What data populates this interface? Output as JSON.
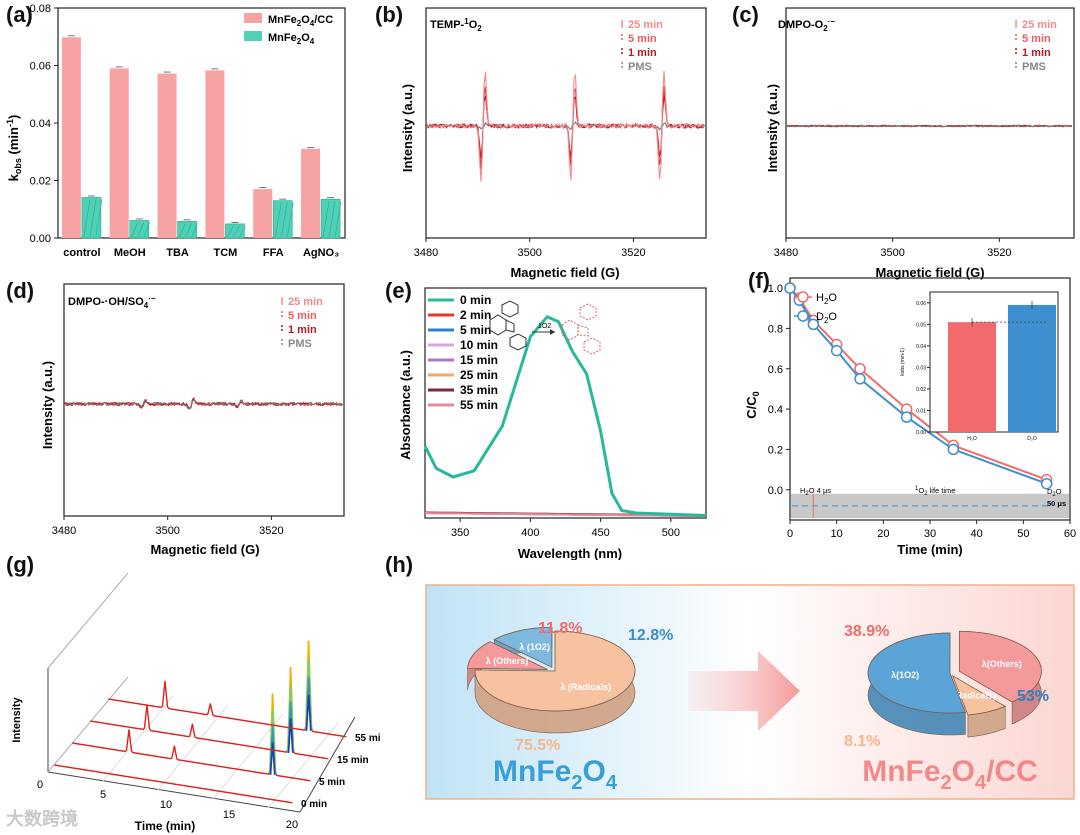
{
  "panel_labels": {
    "a": "(a)",
    "b": "(b)",
    "c": "(c)",
    "d": "(d)",
    "e": "(e)",
    "f": "(f)",
    "g": "(g)",
    "h": "(h)"
  },
  "chart_data": [
    {
      "panel": "a",
      "type": "bar",
      "categories": [
        "control",
        "MeOH",
        "TBA",
        "TCM",
        "FFA",
        "AgNO3"
      ],
      "series": [
        {
          "name": "MnFe2O4/CC",
          "values": [
            0.0698,
            0.059,
            0.0572,
            0.0583,
            0.017,
            0.031
          ],
          "color": "#f8a3a3"
        },
        {
          "name": "MnFe2O4",
          "values": [
            0.0141,
            0.0061,
            0.0058,
            0.0049,
            0.013,
            0.0135
          ],
          "color": "#4fd1b5"
        }
      ],
      "ylabel": "kobs (min-1)",
      "ylim": [
        0,
        0.08
      ],
      "yticks": [
        "0.00",
        "0.02",
        "0.04",
        "0.06",
        "0.08"
      ]
    },
    {
      "panel": "b",
      "type": "line",
      "title": "TEMP-1O2",
      "xlabel": "Magnetic field (G)",
      "ylabel": "Intensity (a.u.)",
      "xlim": [
        3480,
        3534
      ],
      "xticks": [
        3480,
        3500,
        3520
      ],
      "legend": [
        "25 min",
        "5 min",
        "1 min",
        "PMS"
      ],
      "peaks_G": [
        3491.0,
        3508.3,
        3525.5
      ],
      "series": [
        {
          "name": "25 min",
          "amplitude": 1.0,
          "color": "#f28b8b"
        },
        {
          "name": "5 min",
          "amplitude": 0.72,
          "color": "#e0303a"
        },
        {
          "name": "1 min",
          "amplitude": 0.55,
          "color": "#b01a22"
        },
        {
          "name": "PMS",
          "amplitude": 0.04,
          "color": "#777777"
        }
      ]
    },
    {
      "panel": "c",
      "type": "line",
      "title": "DMPO-O2·−",
      "xlabel": "Magnetic field (G)",
      "ylabel": "Intensity (a.u.)",
      "xlim": [
        3480,
        3534
      ],
      "xticks": [
        3480,
        3500,
        3520
      ],
      "legend": [
        "25 min",
        "5 min",
        "1 min",
        "PMS"
      ]
    },
    {
      "panel": "d",
      "type": "line",
      "title": "DMPO-·OH/SO4·−",
      "xlabel": "Magnetic field (G)",
      "ylabel": "Intensity (a.u.)",
      "xlim": [
        3480,
        3534
      ],
      "xticks": [
        3480,
        3500,
        3520
      ],
      "legend": [
        "25 min",
        "5 min",
        "1 min",
        "PMS"
      ]
    },
    {
      "panel": "e",
      "type": "line",
      "xlabel": "Wavelength (nm)",
      "ylabel": "Absorbance (a.u.)",
      "xlim": [
        325,
        525
      ],
      "xticks": [
        350,
        400,
        450,
        500
      ],
      "series": [
        {
          "name": "0 min",
          "color": "#26b99a"
        },
        {
          "name": "2 min",
          "color": "#e0392f"
        },
        {
          "name": "5 min",
          "color": "#2f7fd0"
        },
        {
          "name": "10 min",
          "color": "#d7a6e0"
        },
        {
          "name": "15 min",
          "color": "#a77cc9"
        },
        {
          "name": "25 min",
          "color": "#f2a66b"
        },
        {
          "name": "35 min",
          "color": "#7a2a3c"
        },
        {
          "name": "55 min",
          "color": "#e58a98"
        }
      ],
      "curve_0min": [
        [
          325,
          0.29
        ],
        [
          333,
          0.2
        ],
        [
          345,
          0.165
        ],
        [
          360,
          0.19
        ],
        [
          380,
          0.37
        ],
        [
          400,
          0.73
        ],
        [
          412,
          0.81
        ],
        [
          420,
          0.79
        ],
        [
          430,
          0.67
        ],
        [
          440,
          0.58
        ],
        [
          450,
          0.35
        ],
        [
          458,
          0.1
        ],
        [
          465,
          0.03
        ],
        [
          475,
          0.02
        ],
        [
          525,
          0.01
        ]
      ]
    },
    {
      "panel": "f",
      "type": "line",
      "xlabel": "Time (min)",
      "ylabel": "C/C0",
      "xlim": [
        0,
        60
      ],
      "ylim": [
        -0.15,
        1.05
      ],
      "xticks": [
        0,
        10,
        20,
        30,
        40,
        50,
        60
      ],
      "yticks": [
        "0.0",
        "0.2",
        "0.4",
        "0.6",
        "0.8",
        "1.0"
      ],
      "series": [
        {
          "name": "H2O",
          "color": "#f26b6b",
          "x": [
            0,
            2,
            5,
            10,
            15,
            25,
            35,
            55
          ],
          "y": [
            1.0,
            0.95,
            0.84,
            0.72,
            0.6,
            0.4,
            0.22,
            0.05
          ]
        },
        {
          "name": "D2O",
          "color": "#3d8fd0",
          "x": [
            0,
            2,
            5,
            10,
            15,
            25,
            35,
            55
          ],
          "y": [
            1.0,
            0.94,
            0.82,
            0.69,
            0.55,
            0.36,
            0.2,
            0.03
          ]
        }
      ],
      "annotations": [
        "H2O 4 μs",
        "1O2 life time",
        "D2O",
        "50 μs"
      ],
      "inset": {
        "type": "bar",
        "categories": [
          "H2O",
          "D2O"
        ],
        "values": [
          0.051,
          0.059
        ],
        "colors": [
          "#f26b6b",
          "#3d8fd0"
        ],
        "ylabel": "kobs (min-1)",
        "yticks": [
          "0.00",
          "0.01",
          "0.02",
          "0.03",
          "0.04",
          "0.05",
          "0.06"
        ],
        "ylim": [
          0,
          0.065
        ]
      }
    },
    {
      "panel": "g",
      "type": "line",
      "xlabel": "Time (min)",
      "ylabel": "Intensity",
      "xlim": [
        0,
        20
      ],
      "xticks": [
        0,
        5,
        10,
        15,
        20
      ],
      "series": [
        {
          "name": "0 min",
          "peaks": [
            {
              "t": 16.4,
              "h": 0.0
            }
          ]
        },
        {
          "name": "5 min",
          "peaks": [
            {
              "t": 5.0,
              "h": 0.25
            },
            {
              "t": 8.6,
              "h": 0.15
            },
            {
              "t": 16.4,
              "h": 0.9
            }
          ]
        },
        {
          "name": "15 min",
          "peaks": [
            {
              "t": 5.0,
              "h": 0.28
            },
            {
              "t": 8.6,
              "h": 0.15
            },
            {
              "t": 16.4,
              "h": 0.95
            }
          ]
        },
        {
          "name": "55 min",
          "peaks": [
            {
              "t": 5.0,
              "h": 0.3
            },
            {
              "t": 8.6,
              "h": 0.13
            },
            {
              "t": 16.4,
              "h": 1.0
            }
          ]
        }
      ]
    },
    {
      "panel": "h",
      "type": "pie",
      "pies": [
        {
          "title": "MnFe2O4",
          "slices": [
            {
              "label": "λ (Radicals)",
              "value": 75.5,
              "color": "#f6c2a0"
            },
            {
              "label": "λ (Others)",
              "value": 11.8,
              "color": "#f49a9a"
            },
            {
              "label": "λ (1O2)",
              "value": 12.8,
              "color": "#7fb8df"
            }
          ]
        },
        {
          "title": "MnFe2O4/CC",
          "slices": [
            {
              "label": "λ(Others)",
              "value": 38.9,
              "color": "#f49a9a"
            },
            {
              "label": "λ(Radicals)",
              "value": 8.1,
              "color": "#f6c2a0"
            },
            {
              "label": "λ(1O2)",
              "value": 53,
              "color": "#5aa4d8"
            }
          ]
        }
      ]
    }
  ],
  "watermark": "大数跨境",
  "a_legend": {
    "cc": "MnFe2O4/CC",
    "mn": "MnFe2O4"
  },
  "b_title": "TEMP-1O2",
  "c_title": "DMPO-O2·−",
  "d_title": "DMPO-·OH/SO4·−",
  "h": {
    "left_pct_radicals": "75.5%",
    "left_pct_others": "11.8%",
    "left_pct_o2": "12.8%",
    "right_pct_others": "38.9%",
    "right_pct_radicals": "8.1%",
    "right_pct_o2": "53%",
    "left_lbl_others": "λ (Others)",
    "left_lbl_o2": "λ (1O2)",
    "left_lbl_radicals": "λ (Radicals)",
    "right_lbl_others": "λ(Others)",
    "right_lbl_radicals": "λ(Radicals)",
    "right_lbl_o2": "λ(1O2)",
    "left_title": "MnFe2O4",
    "right_title": "MnFe2O4/CC"
  }
}
